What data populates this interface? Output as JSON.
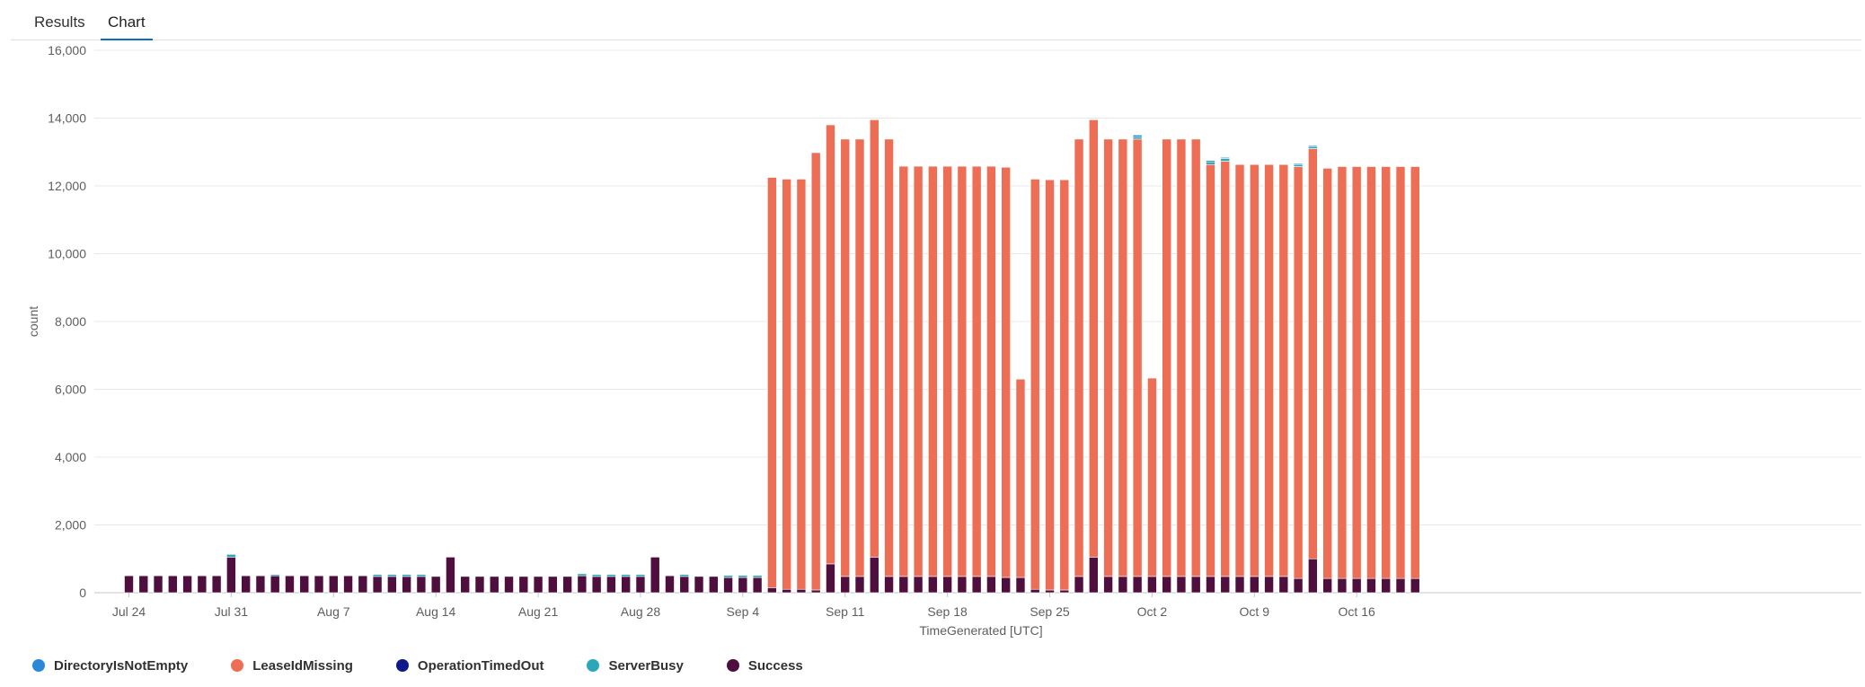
{
  "tabs": [
    {
      "label": "Results",
      "active": false
    },
    {
      "label": "Chart",
      "active": true
    }
  ],
  "chart_data": {
    "type": "bar",
    "stacked": true,
    "title": "",
    "xlabel": "TimeGenerated [UTC]",
    "ylabel": "count",
    "ylim": [
      0,
      16000
    ],
    "y_ticks": [
      "0",
      "2,000",
      "4,000",
      "6,000",
      "8,000",
      "10,000",
      "12,000",
      "14,000",
      "16,000"
    ],
    "x_tick_labels": [
      "Jul 24",
      "Jul 31",
      "Aug 7",
      "Aug 14",
      "Aug 21",
      "Aug 28",
      "Sep 4",
      "Sep 11",
      "Sep 18",
      "Sep 25",
      "Oct 2",
      "Oct 9",
      "Oct 16"
    ],
    "start_label": "Jul 24",
    "grid": true,
    "legend_position": "bottom",
    "series": [
      {
        "name": "DirectoryIsNotEmpty",
        "color": "#2b88d8"
      },
      {
        "name": "LeaseIdMissing",
        "color": "#ee6d55"
      },
      {
        "name": "OperationTimedOut",
        "color": "#0e1a8a"
      },
      {
        "name": "ServerBusy",
        "color": "#2aa7b8"
      },
      {
        "name": "Success",
        "color": "#4e0f3e"
      }
    ],
    "success": [
      500,
      500,
      500,
      500,
      500,
      500,
      500,
      1050,
      500,
      500,
      500,
      500,
      500,
      500,
      500,
      500,
      500,
      480,
      480,
      480,
      480,
      480,
      1050,
      480,
      480,
      480,
      480,
      480,
      480,
      480,
      480,
      500,
      480,
      480,
      480,
      480,
      1050,
      500,
      480,
      480,
      480,
      450,
      450,
      450,
      150,
      100,
      100,
      80,
      850,
      480,
      480,
      1050,
      480,
      480,
      480,
      480,
      480,
      480,
      480,
      480,
      450,
      450,
      100,
      80,
      80,
      480,
      1050,
      480,
      480,
      480,
      480,
      480,
      480,
      480,
      480,
      480,
      480,
      480,
      480,
      480,
      420,
      1000,
      420,
      420,
      420,
      420,
      420,
      420,
      420
    ],
    "lease_id_missing": [
      0,
      0,
      0,
      0,
      0,
      0,
      0,
      0,
      0,
      0,
      0,
      0,
      0,
      0,
      0,
      0,
      0,
      0,
      0,
      0,
      0,
      0,
      0,
      0,
      0,
      0,
      0,
      0,
      0,
      0,
      0,
      0,
      0,
      0,
      0,
      0,
      0,
      0,
      0,
      0,
      0,
      0,
      0,
      0,
      12100,
      12100,
      12100,
      12900,
      12950,
      12900,
      12900,
      12900,
      12900,
      12100,
      12100,
      12100,
      12100,
      12100,
      12100,
      12100,
      12100,
      5850,
      12100,
      12100,
      12100,
      12900,
      12900,
      12900,
      12900,
      12900,
      5850,
      12900,
      12900,
      12900,
      12150,
      12250,
      12150,
      12150,
      12150,
      12150,
      12150,
      12100,
      12100,
      12150,
      12150,
      12150,
      12150,
      12150,
      12150
    ],
    "server_busy": [
      0,
      0,
      0,
      0,
      0,
      0,
      0,
      80,
      0,
      0,
      40,
      0,
      0,
      0,
      0,
      0,
      0,
      60,
      60,
      60,
      60,
      0,
      0,
      0,
      0,
      0,
      0,
      0,
      0,
      0,
      0,
      60,
      60,
      60,
      60,
      60,
      0,
      0,
      60,
      0,
      0,
      60,
      60,
      60,
      0,
      0,
      0,
      0,
      0,
      0,
      0,
      0,
      0,
      0,
      0,
      0,
      0,
      0,
      0,
      0,
      0,
      0,
      0,
      0,
      0,
      0,
      0,
      0,
      0,
      60,
      0,
      0,
      0,
      0,
      80,
      80,
      0,
      0,
      0,
      0,
      60,
      60,
      0,
      0,
      0,
      0,
      0,
      0,
      0
    ],
    "directory_is_not_empty": [
      0,
      0,
      0,
      0,
      0,
      0,
      0,
      0,
      0,
      0,
      0,
      0,
      0,
      0,
      0,
      0,
      0,
      0,
      0,
      0,
      0,
      0,
      0,
      0,
      0,
      0,
      0,
      0,
      0,
      0,
      0,
      0,
      0,
      0,
      0,
      0,
      0,
      0,
      0,
      0,
      0,
      0,
      0,
      0,
      0,
      0,
      0,
      0,
      0,
      0,
      0,
      0,
      0,
      0,
      0,
      0,
      0,
      0,
      0,
      0,
      0,
      0,
      0,
      0,
      0,
      0,
      0,
      0,
      0,
      60,
      0,
      0,
      0,
      0,
      40,
      30,
      0,
      0,
      0,
      0,
      30,
      30,
      0,
      0,
      0,
      0,
      0,
      0,
      0
    ]
  }
}
